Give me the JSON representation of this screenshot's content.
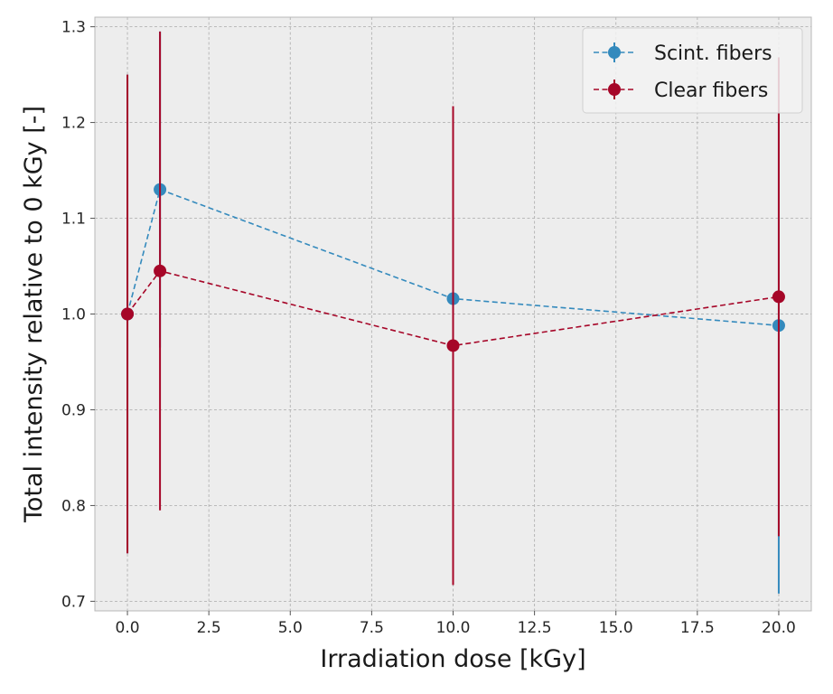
{
  "chart_data": {
    "type": "line",
    "title": "",
    "xlabel": "Irradiation dose [kGy]",
    "ylabel": "Total intensity relative to 0 kGy [-]",
    "xlim": [
      -1.0,
      21.0
    ],
    "ylim": [
      0.69,
      1.31
    ],
    "x_ticks": [
      0.0,
      2.5,
      5.0,
      7.5,
      10.0,
      12.5,
      15.0,
      17.5,
      20.0
    ],
    "x_tick_labels": [
      "0.0",
      "2.5",
      "5.0",
      "7.5",
      "10.0",
      "12.5",
      "15.0",
      "17.5",
      "20.0"
    ],
    "y_ticks": [
      0.7,
      0.8,
      0.9,
      1.0,
      1.1,
      1.2,
      1.3
    ],
    "y_tick_labels": [
      "0.7",
      "0.8",
      "0.9",
      "1.0",
      "1.1",
      "1.2",
      "1.3"
    ],
    "grid": true,
    "legend_position": "top-right",
    "series": [
      {
        "name": "Scint. fibers",
        "color": "#348abd",
        "x": [
          0,
          1,
          10,
          20
        ],
        "values": [
          1.0,
          1.13,
          1.016,
          0.988
        ],
        "errors": [
          0.25,
          0.165,
          0.2,
          0.28
        ]
      },
      {
        "name": "Clear fibers",
        "color": "#a60628",
        "x": [
          0,
          1,
          10,
          20
        ],
        "values": [
          1.0,
          1.045,
          0.967,
          1.018
        ],
        "errors": [
          0.25,
          0.25,
          0.25,
          0.25
        ]
      }
    ]
  }
}
